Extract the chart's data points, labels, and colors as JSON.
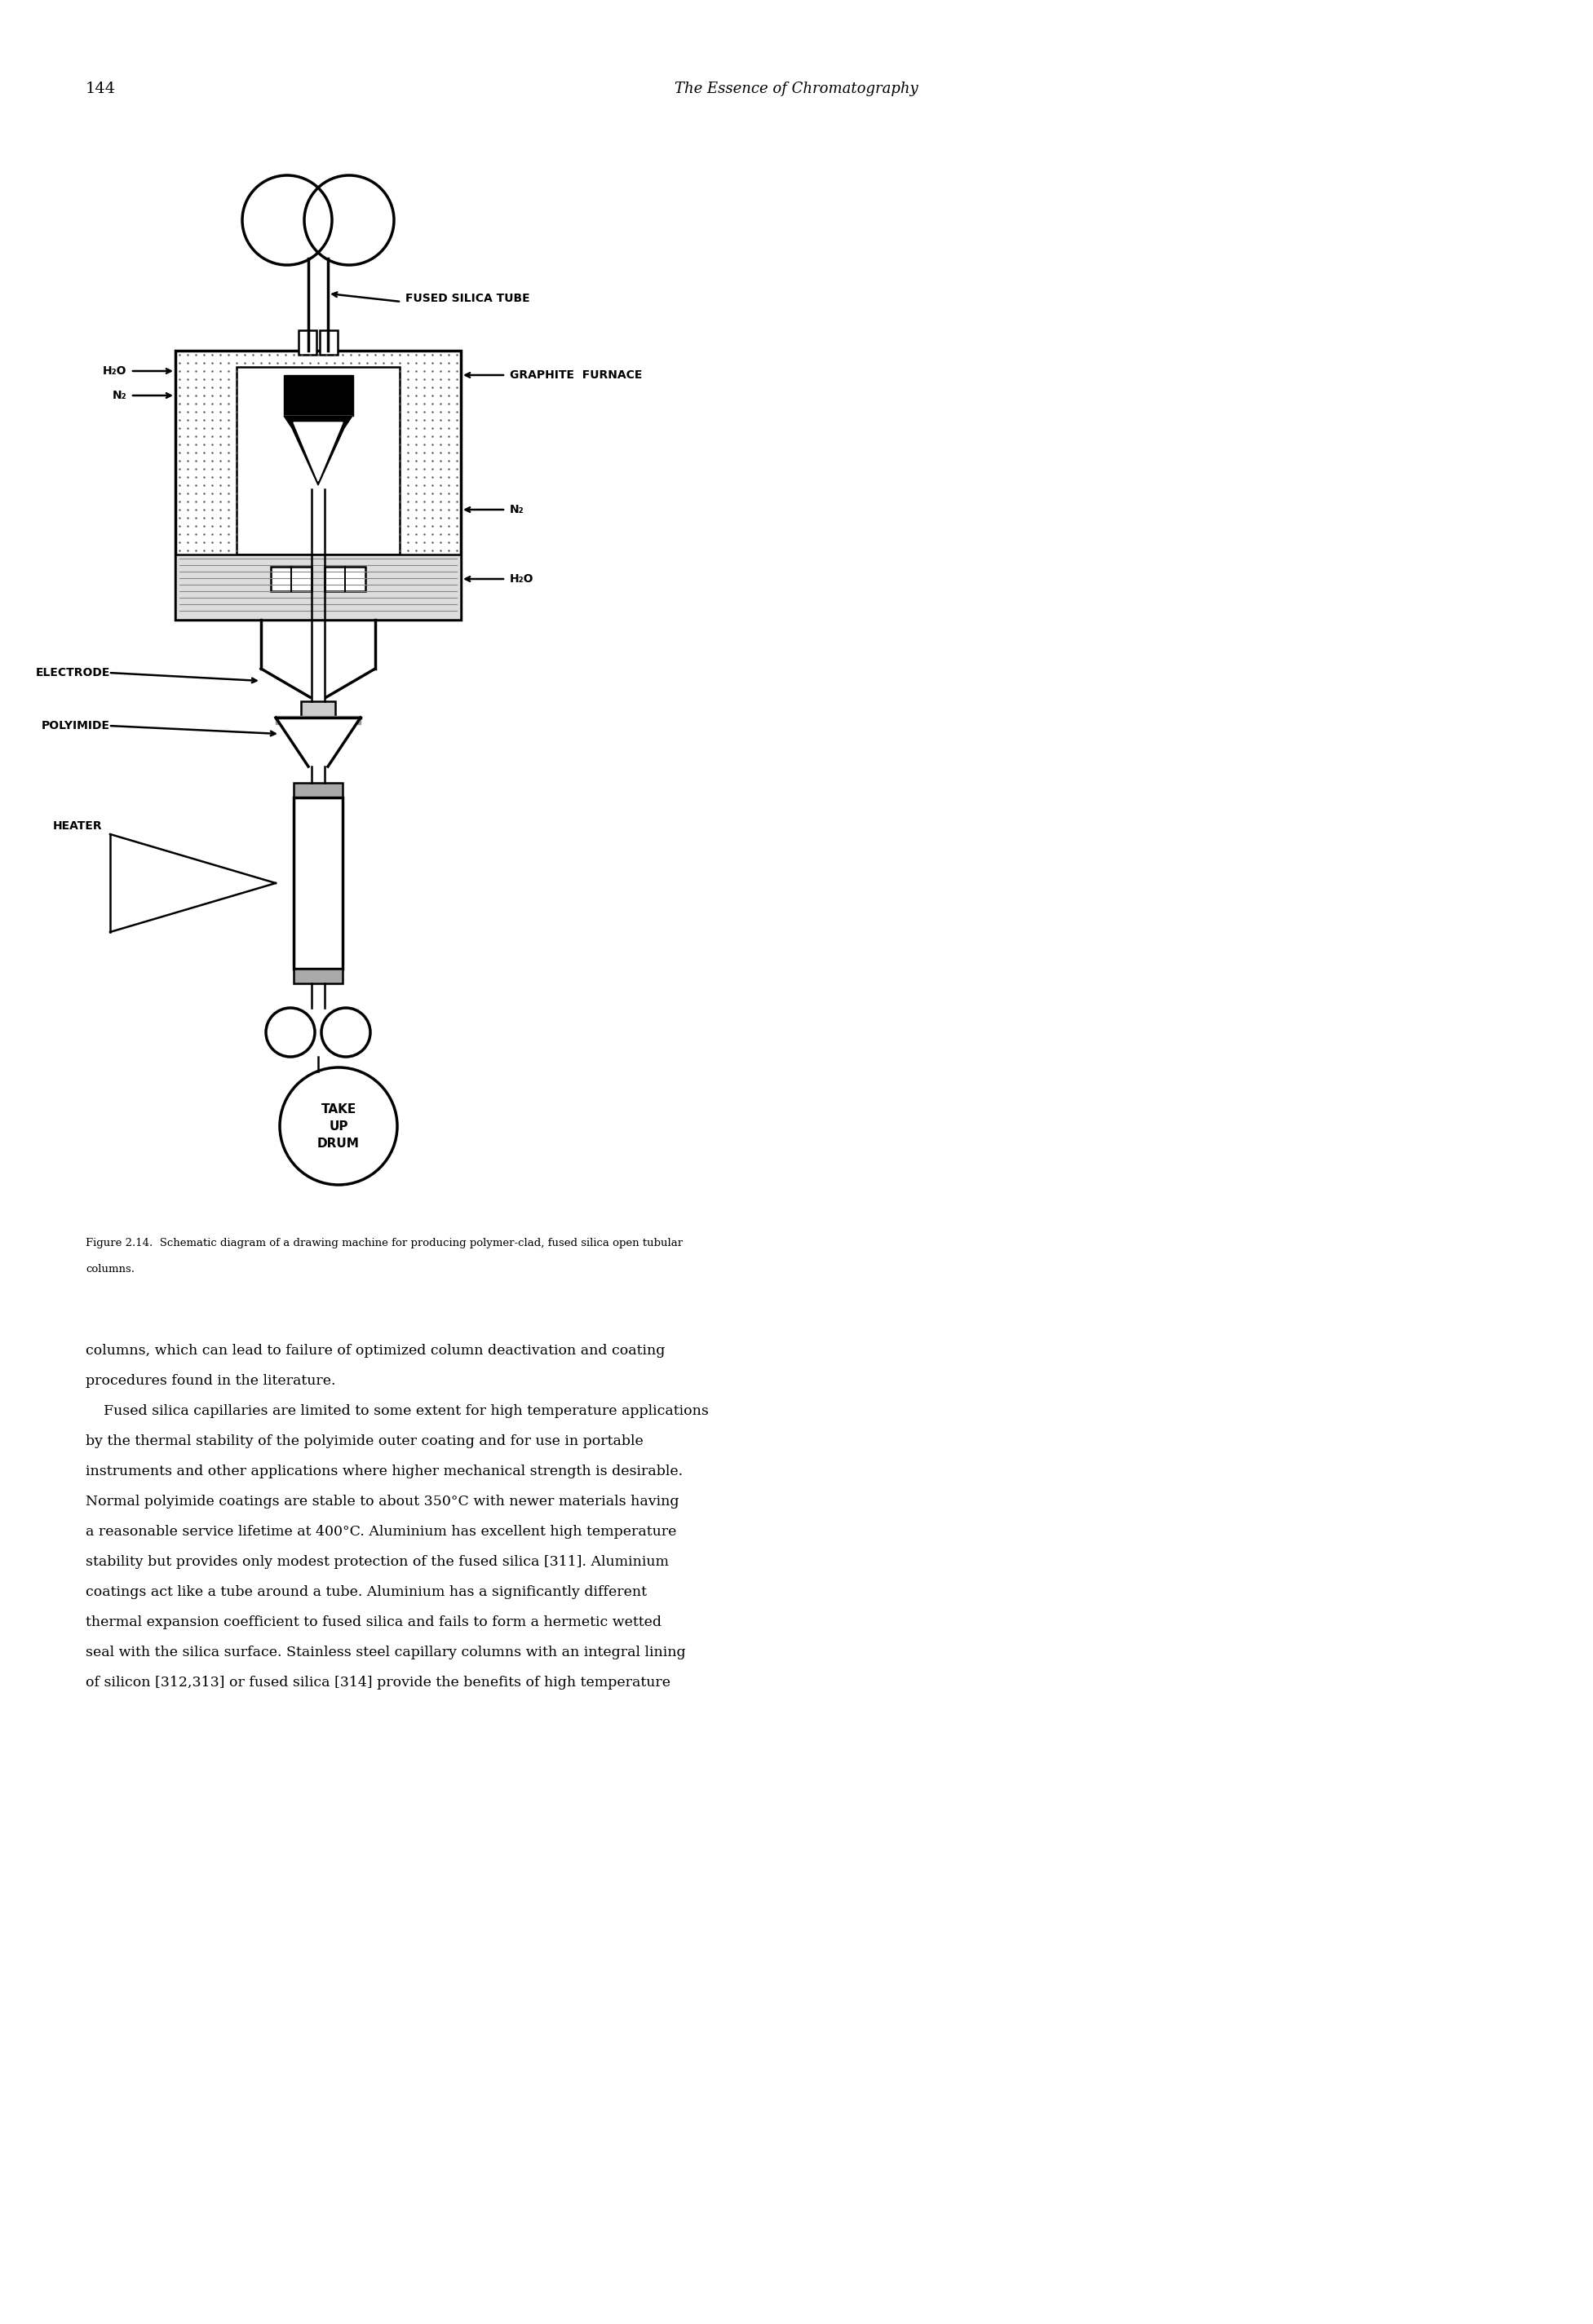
{
  "page_number": "144",
  "header_title": "The Essence of Chromatography",
  "figure_caption_line1": "Figure 2.14.  Schematic diagram of a drawing machine for producing polymer-clad, fused silica open tubular",
  "figure_caption_line2": "columns.",
  "body_text_lines": [
    "columns, which can lead to failure of optimized column deactivation and coating",
    "procedures found in the literature.",
    "    Fused silica capillaries are limited to some extent for high temperature applications",
    "by the thermal stability of the polyimide outer coating and for use in portable",
    "instruments and other applications where higher mechanical strength is desirable.",
    "Normal polyimide coatings are stable to about 350°C with newer materials having",
    "a reasonable service lifetime at 400°C. Aluminium has excellent high temperature",
    "stability but provides only modest protection of the fused silica [311]. Aluminium",
    "coatings act like a tube around a tube. Aluminium has a significantly different",
    "thermal expansion coefficient to fused silica and fails to form a hermetic wetted",
    "seal with the silica surface. Stainless steel capillary columns with an integral lining",
    "of silicon [312,313] or fused silica [314] provide the benefits of high temperature"
  ],
  "label_fused_silica_tube": "FUSED SILICA TUBE",
  "label_graphite_furnace": "GRAPHITE  FURNACE",
  "label_h2o_top": "H₂O",
  "label_n2_top": "N₂",
  "label_n2_right": "N₂",
  "label_h2o_bottom": "H₂O",
  "label_electrode": "ELECTRODE",
  "label_polyimide": "POLYIMIDE",
  "label_heater": "HEATER",
  "label_take_up_drum": "TAKE\nUP\nDRUM",
  "bg_color": "#ffffff",
  "line_color": "#000000"
}
